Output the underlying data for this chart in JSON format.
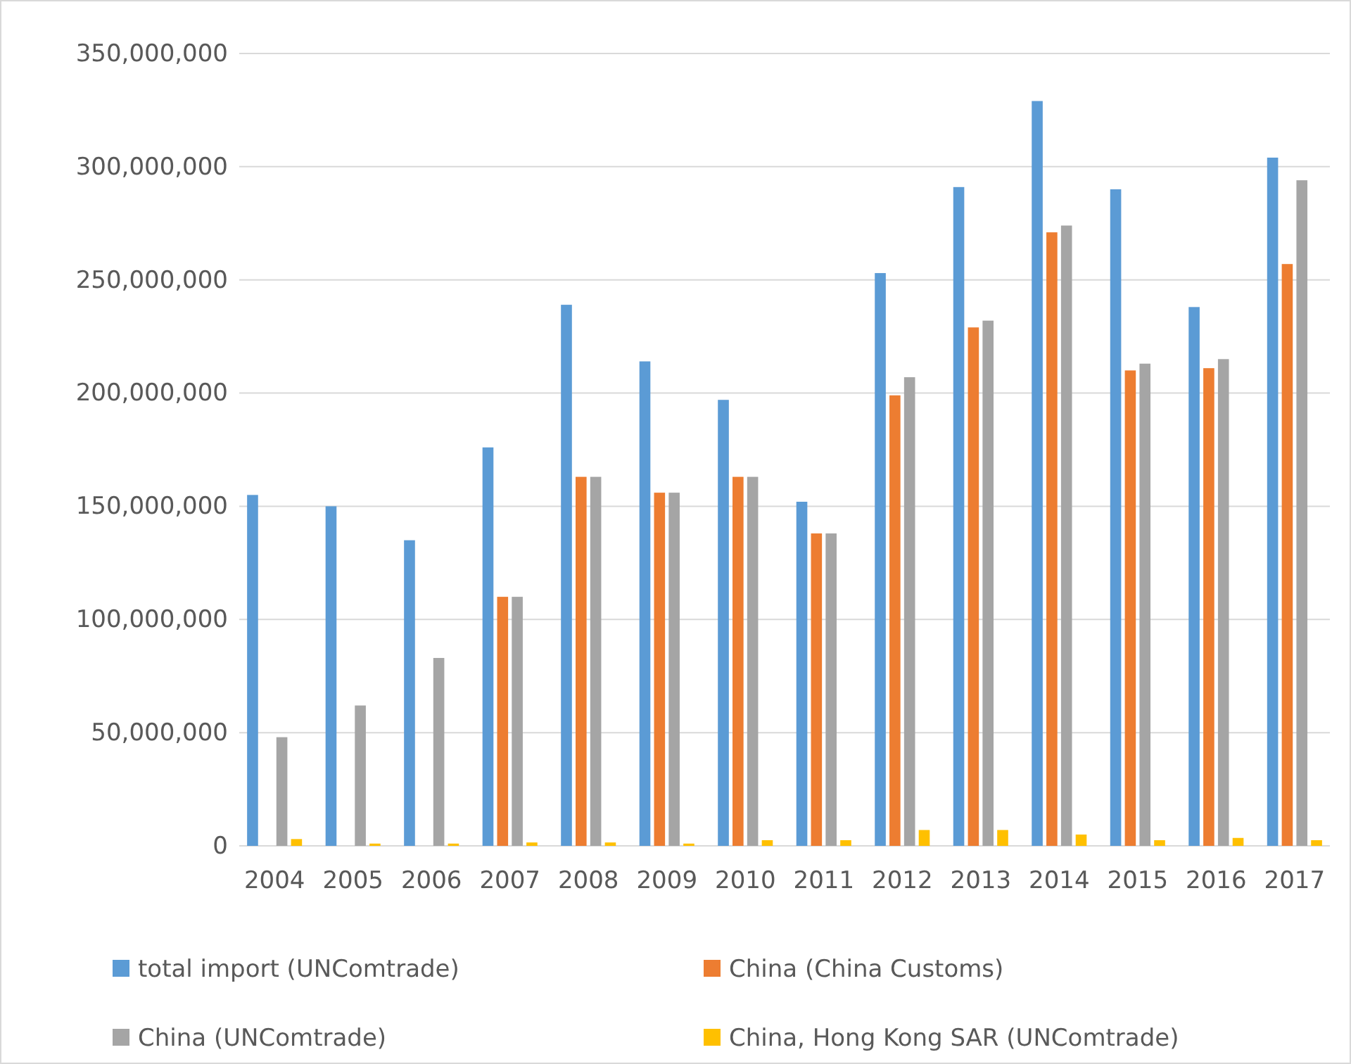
{
  "chart_data": {
    "type": "bar",
    "categories": [
      "2004",
      "2005",
      "2006",
      "2007",
      "2008",
      "2009",
      "2010",
      "2011",
      "2012",
      "2013",
      "2014",
      "2015",
      "2016",
      "2017"
    ],
    "series": [
      {
        "name": "total import (UNComtrade)",
        "color": "#5b9bd5",
        "values": [
          155000000,
          150000000,
          135000000,
          176000000,
          239000000,
          214000000,
          197000000,
          152000000,
          253000000,
          291000000,
          329000000,
          290000000,
          238000000,
          304000000
        ]
      },
      {
        "name": "China (China Customs)",
        "color": "#ed7d31",
        "values": [
          null,
          null,
          null,
          110000000,
          163000000,
          156000000,
          163000000,
          138000000,
          199000000,
          229000000,
          271000000,
          210000000,
          211000000,
          257000000
        ]
      },
      {
        "name": "China (UNComtrade)",
        "color": "#a5a5a5",
        "values": [
          48000000,
          62000000,
          83000000,
          110000000,
          163000000,
          156000000,
          163000000,
          138000000,
          207000000,
          232000000,
          274000000,
          213000000,
          215000000,
          294000000
        ]
      },
      {
        "name": "China, Hong Kong SAR (UNComtrade)",
        "color": "#ffc000",
        "values": [
          3000000,
          1000000,
          1000000,
          1500000,
          1500000,
          1000000,
          2500000,
          2500000,
          7000000,
          7000000,
          5000000,
          2500000,
          3500000,
          2500000
        ]
      }
    ],
    "ylim": [
      0,
      350000000
    ],
    "yticks": [
      {
        "value": 0,
        "label": "0"
      },
      {
        "value": 50000000,
        "label": "50,000,000"
      },
      {
        "value": 100000000,
        "label": "100,000,000"
      },
      {
        "value": 150000000,
        "label": "150,000,000"
      },
      {
        "value": 200000000,
        "label": "200,000,000"
      },
      {
        "value": 250000000,
        "label": "250,000,000"
      },
      {
        "value": 300000000,
        "label": "300,000,000"
      },
      {
        "value": 350000000,
        "label": "350,000,000"
      }
    ],
    "grid": "y",
    "legend": "bottom"
  }
}
